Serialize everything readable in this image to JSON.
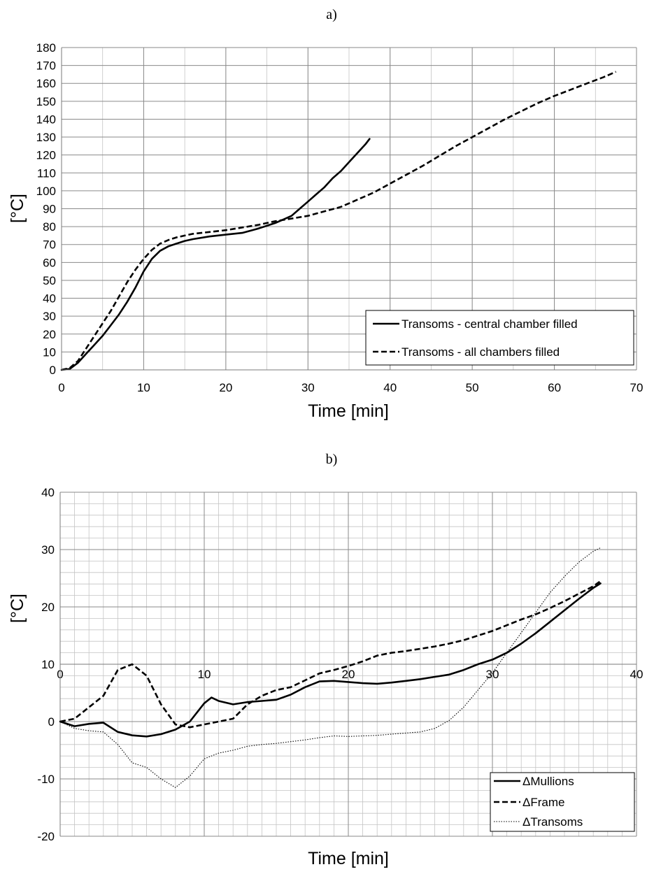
{
  "chart_data": [
    {
      "panel_label": "a)",
      "type": "line",
      "xlabel": "Time [min]",
      "ylabel": "[°C]",
      "xlim": [
        0,
        70
      ],
      "ylim": [
        0,
        180
      ],
      "x_ticks": [
        "0",
        "10",
        "20",
        "30",
        "40",
        "50",
        "60",
        "70"
      ],
      "y_ticks": [
        "0",
        "10",
        "20",
        "30",
        "40",
        "50",
        "60",
        "70",
        "80",
        "90",
        "100",
        "110",
        "120",
        "130",
        "140",
        "150",
        "160",
        "170",
        "180"
      ],
      "grid": true,
      "legend_position": "bottom-right",
      "series": [
        {
          "name": "Transoms - central chamber filled",
          "style": "solid",
          "x": [
            0,
            1,
            2,
            3,
            4,
            5,
            6,
            7,
            8,
            9,
            10,
            11,
            12,
            13,
            14,
            15,
            16,
            18,
            20,
            22,
            24,
            26,
            27,
            28,
            29,
            30,
            31,
            32,
            33,
            34,
            35,
            36,
            37,
            37.5
          ],
          "y": [
            0,
            0.5,
            4,
            9,
            14,
            19,
            25,
            31,
            38,
            46,
            55,
            62,
            66.5,
            69,
            70.5,
            72,
            73,
            74.5,
            75.5,
            76.5,
            79,
            82,
            84,
            86,
            90,
            94,
            98,
            102,
            107,
            111,
            116,
            121,
            126,
            129
          ]
        },
        {
          "name": "Transoms - all chambers filled",
          "style": "dashed",
          "x": [
            0,
            1,
            2,
            3,
            4,
            5,
            6,
            7,
            8,
            9,
            10,
            11,
            12,
            13,
            14,
            15,
            16,
            18,
            20,
            22,
            24,
            26,
            28,
            30,
            32,
            34,
            36,
            38,
            40,
            42,
            44,
            46,
            48,
            50,
            52,
            54,
            56,
            58,
            60,
            62,
            64,
            66,
            67.5
          ],
          "y": [
            0,
            1,
            5,
            12,
            19,
            26,
            33,
            41,
            49,
            56,
            62,
            67,
            70.5,
            72.5,
            74,
            75,
            76,
            77,
            78,
            79.5,
            81,
            83,
            84.5,
            86,
            88.5,
            91,
            95,
            99,
            104,
            109,
            114,
            119.5,
            125,
            130,
            135,
            140,
            144.5,
            149,
            153,
            156.5,
            160,
            163.5,
            166.5
          ]
        }
      ]
    },
    {
      "panel_label": "b)",
      "type": "line",
      "xlabel": "Time [min]",
      "ylabel": "[°C]",
      "xlim": [
        0,
        40
      ],
      "ylim": [
        -20,
        40
      ],
      "x_ticks": [
        "0",
        "10",
        "20",
        "30",
        "40"
      ],
      "y_ticks": [
        "-20",
        "-10",
        "0",
        "10",
        "20",
        "30",
        "40"
      ],
      "grid": true,
      "legend_position": "bottom-right",
      "series": [
        {
          "name": "ΔMullions",
          "style": "solid",
          "x": [
            0,
            1,
            2,
            3,
            4,
            5,
            6,
            7,
            8,
            9,
            10,
            10.5,
            11,
            12,
            13,
            14,
            15,
            16,
            17,
            18,
            19,
            20,
            21,
            22,
            23,
            24,
            25,
            26,
            27,
            28,
            29,
            30,
            31,
            32,
            33,
            34,
            35,
            36,
            37,
            37.5
          ],
          "y": [
            0,
            -0.8,
            -0.4,
            -0.2,
            -1.8,
            -2.4,
            -2.6,
            -2.2,
            -1.4,
            0,
            3.2,
            4.2,
            3.6,
            3,
            3.4,
            3.6,
            3.8,
            4.7,
            6,
            7,
            7.1,
            6.9,
            6.7,
            6.6,
            6.8,
            7.1,
            7.4,
            7.8,
            8.2,
            9,
            10,
            10.8,
            12,
            13.6,
            15.4,
            17.4,
            19.4,
            21.4,
            23.3,
            24.1
          ]
        },
        {
          "name": "ΔFrame",
          "style": "dashed",
          "x": [
            0,
            1,
            2,
            3,
            4,
            5,
            6,
            7,
            8,
            9,
            10,
            11,
            12,
            13,
            14,
            15,
            16,
            17,
            18,
            19,
            20,
            21,
            22,
            23,
            24,
            25,
            26,
            27,
            28,
            29,
            30,
            31,
            32,
            33,
            34,
            35,
            36,
            37,
            37.5
          ],
          "y": [
            0,
            0.5,
            2.5,
            4.5,
            9,
            10,
            8,
            3,
            -0.5,
            -1,
            -0.5,
            0,
            0.5,
            3,
            4.5,
            5.5,
            6,
            7.2,
            8.4,
            9,
            9.7,
            10.5,
            11.5,
            12,
            12.3,
            12.7,
            13.1,
            13.6,
            14.2,
            15,
            15.8,
            16.8,
            17.8,
            18.7,
            19.8,
            21,
            22.3,
            23.6,
            24.5
          ]
        },
        {
          "name": "ΔTransoms",
          "style": "dotted",
          "x": [
            0,
            1,
            2,
            3,
            4,
            5,
            6,
            7,
            8,
            9,
            10,
            11,
            12,
            13,
            14,
            15,
            16,
            17,
            18,
            19,
            20,
            21,
            22,
            23,
            24,
            25,
            26,
            27,
            28,
            29,
            30,
            31,
            32,
            33,
            34,
            35,
            36,
            37,
            37.5
          ],
          "y": [
            0,
            -1.2,
            -1.6,
            -1.8,
            -4,
            -7.2,
            -8,
            -10,
            -11.5,
            -9.5,
            -6.5,
            -5.5,
            -5,
            -4.3,
            -4,
            -3.8,
            -3.5,
            -3.2,
            -2.8,
            -2.5,
            -2.6,
            -2.5,
            -2.4,
            -2.2,
            -2,
            -1.8,
            -1.2,
            0.2,
            2.5,
            5.5,
            8.5,
            12,
            15.5,
            19,
            22.5,
            25.3,
            27.8,
            29.7,
            30.3
          ]
        }
      ]
    }
  ]
}
